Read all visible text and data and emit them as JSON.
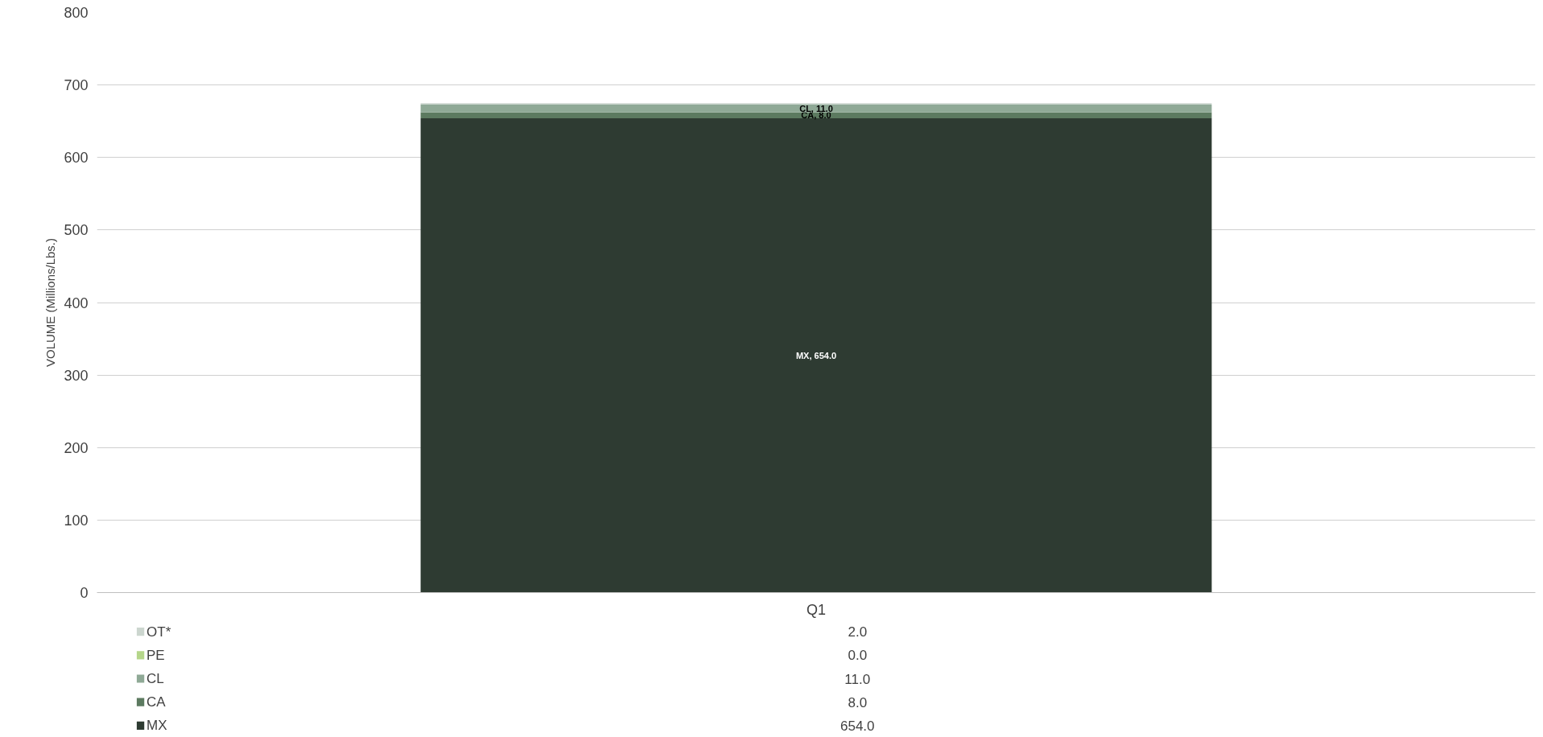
{
  "chart_data": {
    "type": "bar",
    "stacked": true,
    "categories": [
      "Q1"
    ],
    "ylabel": "VOLUME (Millions/Lbs.)",
    "ylim": [
      0,
      800
    ],
    "yticks": [
      0,
      100,
      200,
      300,
      400,
      500,
      600,
      700,
      800
    ],
    "grid": "y",
    "legend": "bottom",
    "annotations": [
      "2.0",
      "0.0",
      "11.0",
      "8.0",
      "654.0"
    ],
    "series": [
      {
        "name": "MX",
        "color": "#2e3b32",
        "values": [
          654.0
        ],
        "value_labels": [
          "MX, 654.0"
        ]
      },
      {
        "name": "CA",
        "color": "#5c7a60",
        "values": [
          8.0
        ],
        "value_labels": [
          "CA, 8.0"
        ]
      },
      {
        "name": "CL",
        "color": "#8fa996",
        "values": [
          11.0
        ],
        "value_labels": [
          "CL, 11.0"
        ]
      },
      {
        "name": "PE",
        "color": "#b5d68a",
        "values": [
          0.0
        ],
        "value_labels": [
          null
        ]
      },
      {
        "name": "OT*",
        "color": "#ccd6cf",
        "values": [
          2.0
        ],
        "value_labels": [
          null
        ]
      }
    ]
  }
}
